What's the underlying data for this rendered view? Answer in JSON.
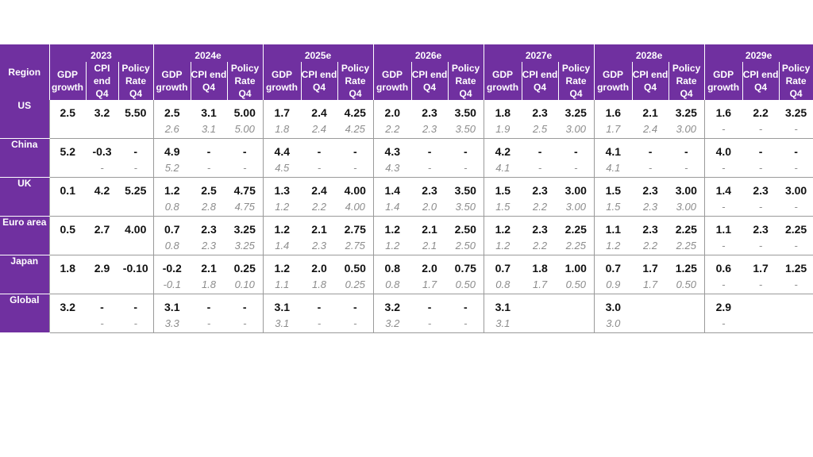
{
  "table": {
    "region_header": "Region",
    "years": [
      "2023",
      "2024e",
      "2025e",
      "2026e",
      "2027e",
      "2028e",
      "2029e"
    ],
    "sub_headers": [
      [
        "GDP growth",
        "CPI end Q4",
        "Policy Rate Q4"
      ],
      [
        "GDP growth",
        "CPI end Q4",
        "Policy Rate Q4"
      ],
      [
        "GDP growth",
        "CPI end Q4",
        "Policy Rate Q4"
      ],
      [
        "GDP growth",
        "CPI end Q4",
        "Policy Rate Q4"
      ],
      [
        "GDP growth",
        "CPI end Q4",
        "Policy Rate Q4"
      ],
      [
        "GDP growth",
        "CPI end Q4",
        "Policy Rate Q4"
      ],
      [
        "GDP growth",
        "CPI end Q4",
        "Policy Rate Q4"
      ]
    ],
    "rows": [
      {
        "region": "US",
        "current": [
          "2.5",
          "3.2",
          "5.50",
          "2.5",
          "3.1",
          "5.00",
          "1.7",
          "2.4",
          "4.25",
          "2.0",
          "2.3",
          "3.50",
          "1.8",
          "2.3",
          "3.25",
          "1.6",
          "2.1",
          "3.25",
          "1.6",
          "2.2",
          "3.25"
        ],
        "previous": [
          "",
          "",
          "",
          "2.6",
          "3.1",
          "5.00",
          "1.8",
          "2.4",
          "4.25",
          "2.2",
          "2.3",
          "3.50",
          "1.9",
          "2.5",
          "3.00",
          "1.7",
          "2.4",
          "3.00",
          "-",
          "-",
          "-"
        ]
      },
      {
        "region": "China",
        "current": [
          "5.2",
          "-0.3",
          "-",
          "4.9",
          "-",
          "-",
          "4.4",
          "-",
          "-",
          "4.3",
          "-",
          "-",
          "4.2",
          "-",
          "-",
          "4.1",
          "-",
          "-",
          "4.0",
          "-",
          "-"
        ],
        "previous": [
          "",
          "-",
          "-",
          "5.2",
          "-",
          "-",
          "4.5",
          "-",
          "-",
          "4.3",
          "-",
          "-",
          "4.1",
          "-",
          "-",
          "4.1",
          "-",
          "-",
          "-",
          "-",
          "-"
        ]
      },
      {
        "region": "UK",
        "current": [
          "0.1",
          "4.2",
          "5.25",
          "1.2",
          "2.5",
          "4.75",
          "1.3",
          "2.4",
          "4.00",
          "1.4",
          "2.3",
          "3.50",
          "1.5",
          "2.3",
          "3.00",
          "1.5",
          "2.3",
          "3.00",
          "1.4",
          "2.3",
          "3.00"
        ],
        "previous": [
          "",
          "",
          "",
          "0.8",
          "2.8",
          "4.75",
          "1.2",
          "2.2",
          "4.00",
          "1.4",
          "2.0",
          "3.50",
          "1.5",
          "2.2",
          "3.00",
          "1.5",
          "2.3",
          "3.00",
          "-",
          "-",
          "-"
        ]
      },
      {
        "region": "Euro area",
        "current": [
          "0.5",
          "2.7",
          "4.00",
          "0.7",
          "2.3",
          "3.25",
          "1.2",
          "2.1",
          "2.75",
          "1.2",
          "2.1",
          "2.50",
          "1.2",
          "2.3",
          "2.25",
          "1.1",
          "2.3",
          "2.25",
          "1.1",
          "2.3",
          "2.25"
        ],
        "previous": [
          "",
          "",
          "",
          "0.8",
          "2.3",
          "3.25",
          "1.4",
          "2.3",
          "2.75",
          "1.2",
          "2.1",
          "2.50",
          "1.2",
          "2.2",
          "2.25",
          "1.2",
          "2.2",
          "2.25",
          "-",
          "-",
          "-"
        ]
      },
      {
        "region": "Japan",
        "current": [
          "1.8",
          "2.9",
          "-0.10",
          "-0.2",
          "2.1",
          "0.25",
          "1.2",
          "2.0",
          "0.50",
          "0.8",
          "2.0",
          "0.75",
          "0.7",
          "1.8",
          "1.00",
          "0.7",
          "1.7",
          "1.25",
          "0.6",
          "1.7",
          "1.25"
        ],
        "previous": [
          "",
          "",
          "",
          "-0.1",
          "1.8",
          "0.10",
          "1.1",
          "1.8",
          "0.25",
          "0.8",
          "1.7",
          "0.50",
          "0.8",
          "1.7",
          "0.50",
          "0.9",
          "1.7",
          "0.50",
          "-",
          "-",
          "-"
        ]
      },
      {
        "region": "Global",
        "current": [
          "3.2",
          "-",
          "-",
          "3.1",
          "-",
          "-",
          "3.1",
          "-",
          "-",
          "3.2",
          "-",
          "-",
          "3.1",
          "",
          "",
          "3.0",
          "",
          "",
          "2.9",
          "",
          ""
        ],
        "previous": [
          "",
          "-",
          "-",
          "3.3",
          "-",
          "-",
          "3.1",
          "-",
          "-",
          "3.2",
          "-",
          "-",
          "3.1",
          "",
          "",
          "3.0",
          "",
          "",
          "-",
          "",
          ""
        ]
      }
    ]
  },
  "chart_data": {
    "type": "table",
    "columns": [
      "2023",
      "2024e",
      "2025e",
      "2026e",
      "2027e",
      "2028e",
      "2029e"
    ],
    "metrics": [
      "GDP growth",
      "CPI end Q4",
      "Policy Rate Q4"
    ],
    "regions": [
      "US",
      "China",
      "UK",
      "Euro area",
      "Japan",
      "Global"
    ]
  },
  "colors": {
    "header_bg": "#7030a0",
    "header_text": "#ffffff",
    "value_text": "#111111",
    "previous_text": "#8c8c8c"
  }
}
